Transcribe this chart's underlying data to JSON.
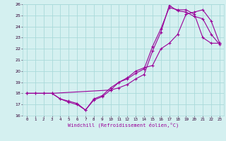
{
  "xlabel": "Windchill (Refroidissement éolien,°C)",
  "bg_color": "#d4f0f0",
  "line_color": "#990099",
  "grid_color": "#aadada",
  "xlim": [
    -0.5,
    23.5
  ],
  "ylim": [
    16,
    26
  ],
  "xticks": [
    0,
    1,
    2,
    3,
    4,
    5,
    6,
    7,
    8,
    9,
    10,
    11,
    12,
    13,
    14,
    15,
    16,
    17,
    18,
    19,
    20,
    21,
    22,
    23
  ],
  "yticks": [
    16,
    17,
    18,
    19,
    20,
    21,
    22,
    23,
    24,
    25,
    26
  ],
  "line1_x": [
    0,
    1,
    2,
    3,
    4,
    5,
    6,
    7,
    8,
    9,
    10,
    11,
    12,
    13,
    14,
    15,
    16,
    17,
    18,
    19,
    20,
    21,
    22,
    23
  ],
  "line1_y": [
    18,
    18,
    18,
    18,
    17.5,
    17.2,
    17.0,
    16.5,
    17.5,
    17.8,
    18.5,
    19.0,
    19.3,
    19.8,
    20.2,
    22.2,
    23.8,
    25.7,
    25.5,
    25.5,
    25.1,
    23.0,
    22.5,
    22.5
  ],
  "line2_x": [
    0,
    1,
    2,
    3,
    4,
    5,
    6,
    7,
    8,
    9,
    10,
    11,
    12,
    13,
    14,
    15,
    16,
    17,
    18,
    19,
    20,
    21,
    22,
    23
  ],
  "line2_y": [
    18,
    18,
    18,
    18,
    17.5,
    17.3,
    17.1,
    16.5,
    17.4,
    17.7,
    18.3,
    18.5,
    18.8,
    19.3,
    19.7,
    21.8,
    23.5,
    25.9,
    25.4,
    25.3,
    24.9,
    24.7,
    23.3,
    22.4
  ],
  "line3_x": [
    0,
    3,
    10,
    11,
    12,
    13,
    14,
    15,
    16,
    17,
    18,
    19,
    20,
    21,
    22,
    23
  ],
  "line3_y": [
    18,
    18,
    18.3,
    19.0,
    19.4,
    20.0,
    20.3,
    20.5,
    22.0,
    22.5,
    23.3,
    25.1,
    25.3,
    25.5,
    24.5,
    22.5
  ]
}
